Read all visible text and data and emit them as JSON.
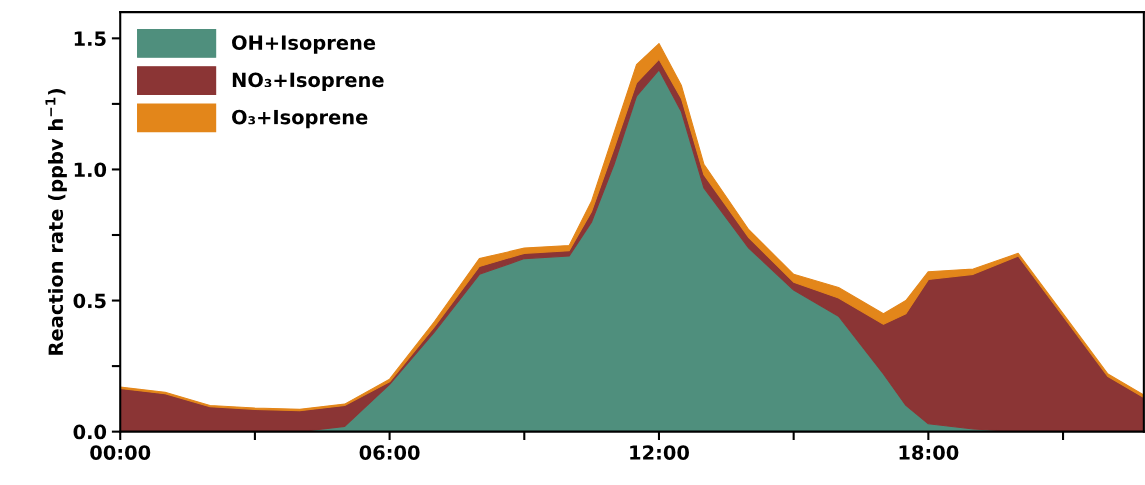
{
  "chart_data": {
    "type": "area",
    "stacked": true,
    "ylabel": "Reaction rate (ppbv h$^{−1}$)",
    "x": [
      0,
      1,
      2,
      3,
      4,
      5,
      6,
      7,
      8,
      9,
      10,
      10.5,
      11,
      11.5,
      12,
      12.5,
      13,
      14,
      15,
      16,
      17,
      17.5,
      18,
      19,
      20,
      21,
      22,
      22.8
    ],
    "series": [
      {
        "name": "OH+Isoprene",
        "color": "#4f8f7d",
        "values": [
          0,
          0,
          0,
          0,
          0,
          0.02,
          0.18,
          0.38,
          0.6,
          0.66,
          0.67,
          0.8,
          1.02,
          1.28,
          1.38,
          1.22,
          0.93,
          0.7,
          0.54,
          0.44,
          0.22,
          0.1,
          0.03,
          0.01,
          0,
          0,
          0,
          0
        ]
      },
      {
        "name": "NO₃+Isoprene",
        "color": "#8b3535",
        "values": [
          0.165,
          0.145,
          0.095,
          0.085,
          0.08,
          0.08,
          0.01,
          0.02,
          0.03,
          0.02,
          0.02,
          0.04,
          0.06,
          0.05,
          0.04,
          0.05,
          0.05,
          0.04,
          0.03,
          0.07,
          0.19,
          0.35,
          0.55,
          0.59,
          0.67,
          0.44,
          0.21,
          0.13
        ]
      },
      {
        "name": "O₃+Isoprene",
        "color": "#e3861a",
        "values": [
          0.005,
          0.005,
          0.005,
          0.005,
          0.005,
          0.005,
          0.01,
          0.02,
          0.03,
          0.02,
          0.02,
          0.04,
          0.06,
          0.07,
          0.06,
          0.05,
          0.04,
          0.03,
          0.03,
          0.04,
          0.04,
          0.05,
          0.03,
          0.02,
          0.01,
          0.01,
          0.01,
          0.01
        ]
      }
    ],
    "xlim": [
      0,
      22.8
    ],
    "xticks": [
      {
        "value": 0,
        "label": "00:00"
      },
      {
        "value": 3,
        "label": null
      },
      {
        "value": 6,
        "label": "06:00"
      },
      {
        "value": 9,
        "label": null
      },
      {
        "value": 12,
        "label": "12:00"
      },
      {
        "value": 15,
        "label": null
      },
      {
        "value": 18,
        "label": "18:00"
      },
      {
        "value": 21,
        "label": null
      }
    ],
    "ylim": [
      0,
      1.6
    ],
    "yticks": [
      {
        "value": 0,
        "label": "0.0"
      },
      {
        "value": 0.25,
        "label": null
      },
      {
        "value": 0.5,
        "label": "0.5"
      },
      {
        "value": 0.75,
        "label": null
      },
      {
        "value": 1.0,
        "label": "1.0"
      },
      {
        "value": 1.25,
        "label": null
      },
      {
        "value": 1.5,
        "label": "1.5"
      }
    ],
    "legend": "top left",
    "grid": false
  }
}
